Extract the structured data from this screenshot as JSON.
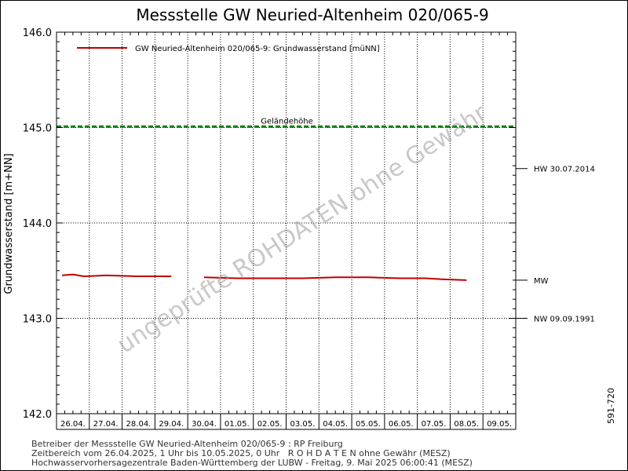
{
  "chart_data": {
    "type": "line",
    "title": "Messstelle GW Neuried-Altenheim 020/065-9",
    "ylabel": "Grundwasserstand [m+NN]",
    "ylim": [
      142.0,
      146.0
    ],
    "yticks": [
      "142.0",
      "143.0",
      "144.0",
      "145.0",
      "146.0"
    ],
    "xlim": [
      "2025-04-26",
      "2025-05-10"
    ],
    "categories": [
      "26.04.",
      "27.04.",
      "28.04.",
      "29.04.",
      "30.04.",
      "01.05.",
      "02.05.",
      "03.05.",
      "04.05.",
      "05.05.",
      "06.05.",
      "07.05.",
      "08.05.",
      "09.05."
    ],
    "grid": true,
    "legend": "top-left",
    "series": [
      {
        "name": "GW Neuried-Altenheim 020/065-9: Grundwasserstand  [müNN]",
        "color": "#c00000",
        "segments": [
          [
            [
              "2025-04-26",
              143.45
            ],
            [
              "2025-04-26",
              143.46
            ],
            [
              "2025-04-26",
              143.44
            ],
            [
              "2025-04-27",
              143.45
            ],
            [
              "2025-04-28",
              143.44
            ],
            [
              "2025-04-29",
              143.44
            ]
          ],
          [
            [
              "2025-04-30",
              143.43
            ],
            [
              "2025-05-01",
              143.42
            ],
            [
              "2025-05-02",
              143.42
            ],
            [
              "2025-05-03",
              143.42
            ],
            [
              "2025-05-04",
              143.43
            ],
            [
              "2025-05-05",
              143.43
            ],
            [
              "2025-05-06",
              143.42
            ],
            [
              "2025-05-07",
              143.42
            ],
            [
              "2025-05-07",
              143.41
            ],
            [
              "2025-05-08",
              143.4
            ]
          ]
        ]
      }
    ],
    "reference_lines": [
      {
        "label": "Geländehöhe",
        "value": 145.01,
        "color": "#008000",
        "style": "dashed"
      },
      {
        "label": "HW 30.07.2014",
        "value": 144.57,
        "side": "right"
      },
      {
        "label": "MW",
        "value": 143.4,
        "side": "right"
      },
      {
        "label": "NW 09.09.1991",
        "value": 143.0,
        "side": "right"
      }
    ]
  },
  "watermark": "ungeprüfte ROHDATEN ohne Gewähr",
  "footer": {
    "line1": "Betreiber der Messstelle GW Neuried-Altenheim 020/065-9 : RP Freiburg",
    "line2": "Zeitbereich vom 26.04.2025, 1 Uhr bis 10.05.2025, 0 Uhr   R O H D A T E N ohne Gewähr (MESZ)",
    "line3": "Hochwasservorhersagezentrale Baden-Württemberg der LUBW - Freitag, 9. Mai 2025 06:00:41 (MESZ)"
  },
  "side_id": "591-720"
}
